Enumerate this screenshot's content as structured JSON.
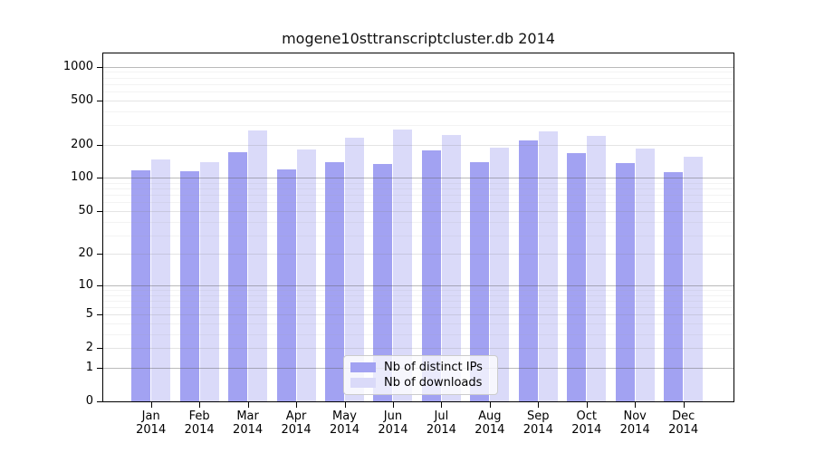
{
  "chart_data": {
    "type": "bar",
    "title": "mogene10sttranscriptcluster.db 2014",
    "categories": [
      "Jan 2014",
      "Feb 2014",
      "Mar 2014",
      "Apr 2014",
      "May 2014",
      "Jun 2014",
      "Jul 2014",
      "Aug 2014",
      "Sep 2014",
      "Oct 2014",
      "Nov 2014",
      "Dec 2014"
    ],
    "series": [
      {
        "name": "Nb of distinct IPs",
        "color": "#a2a2f2",
        "values": [
          118,
          116,
          171,
          120,
          138,
          133,
          178,
          140,
          220,
          168,
          136,
          112
        ]
      },
      {
        "name": "Nb of downloads",
        "color": "#dadaf9",
        "values": [
          148,
          138,
          266,
          180,
          231,
          272,
          243,
          189,
          264,
          240,
          183,
          156
        ]
      }
    ],
    "yscale": "log1p",
    "ylim": [
      0,
      1320
    ],
    "ytick_values": [
      0,
      1,
      2,
      5,
      10,
      20,
      50,
      100,
      200,
      500,
      1000
    ],
    "ytick_labels": [
      "0",
      "1",
      "2",
      "5",
      "10",
      "20",
      "50",
      "100",
      "200",
      "500",
      "1000"
    ],
    "minor_gridline_values": [
      3,
      4,
      6,
      7,
      8,
      9,
      30,
      40,
      60,
      70,
      80,
      90,
      300,
      400,
      600,
      700,
      800,
      900
    ],
    "grid": true,
    "legend_position": "lower center",
    "xlabel": "",
    "ylabel": ""
  },
  "colors": {
    "background": "#ffffff",
    "axis": "#000000",
    "text": "#000000",
    "legend_border": "#cccccc"
  }
}
